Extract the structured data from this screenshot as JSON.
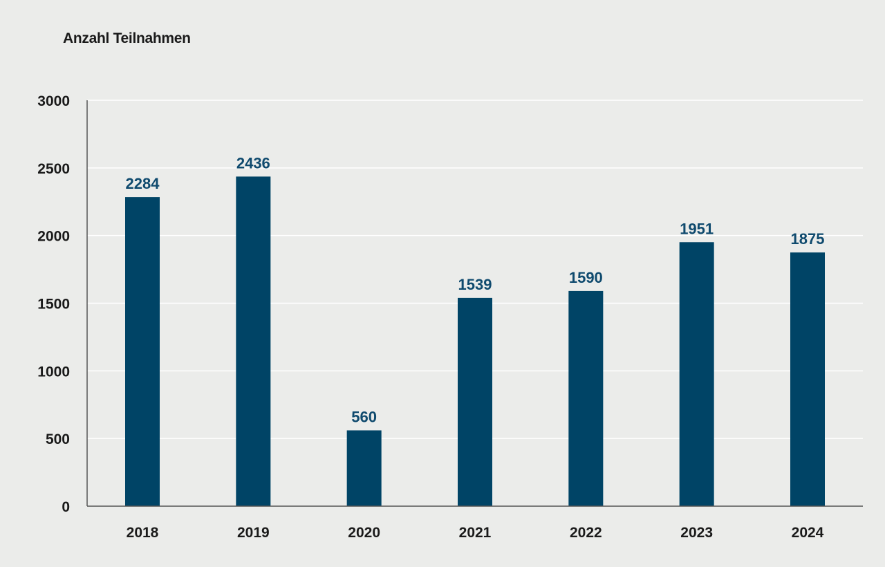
{
  "chart_data": {
    "type": "bar",
    "ylabel": "Anzahl Teilnahmen",
    "categories": [
      "2018",
      "2019",
      "2020",
      "2021",
      "2022",
      "2023",
      "2024"
    ],
    "values": [
      2284,
      2436,
      560,
      1539,
      1590,
      1951,
      1875
    ],
    "ylim": [
      0,
      3000
    ],
    "yticks": [
      0,
      500,
      1000,
      1500,
      2000,
      2500,
      3000
    ],
    "grid": true,
    "bar_color": "#004466",
    "label_color": "#0f4a6e",
    "axis_color": "#555555",
    "grid_color": "#ffffff"
  }
}
